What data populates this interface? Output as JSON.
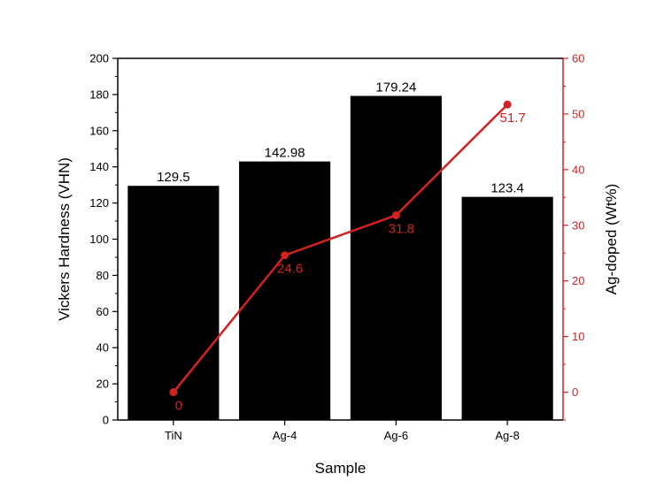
{
  "chart_data": {
    "type": "bar",
    "categories": [
      "TiN",
      "Ag-4",
      "Ag-6",
      "Ag-8"
    ],
    "series": [
      {
        "values": [
          129.5,
          142.98,
          179.24,
          123.4
        ],
        "data_labels": [
          "129.5",
          "142.98",
          "179.24",
          "123.4"
        ],
        "color": "#000000",
        "axis": "left",
        "kind": "bar"
      },
      {
        "values": [
          0,
          24.6,
          31.8,
          51.7
        ],
        "data_labels": [
          "0",
          "24.6",
          "31.8",
          "51.7"
        ],
        "color": "#d32222",
        "axis": "right",
        "kind": "line"
      }
    ],
    "xlabel": "Sample",
    "ylabel": "Vickers Hardness (VHN)",
    "y2label": "Ag-doped (Wt%)",
    "ylim": [
      0,
      200
    ],
    "y2lim": [
      -5,
      60
    ],
    "yticks": [
      "0",
      "20",
      "40",
      "60",
      "80",
      "100",
      "120",
      "140",
      "160",
      "180",
      "200"
    ],
    "y2ticks": [
      "0",
      "10",
      "20",
      "30",
      "40",
      "50",
      "60"
    ],
    "grid": false,
    "legend": "none"
  }
}
